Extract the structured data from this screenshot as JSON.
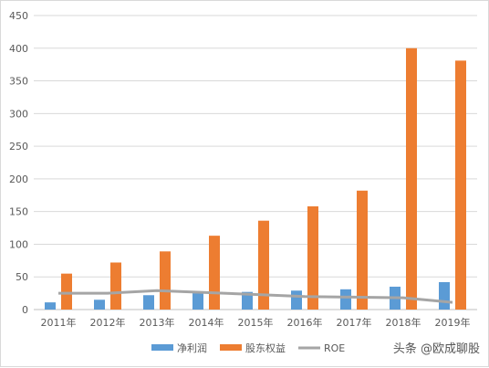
{
  "chart_data": {
    "type": "bar",
    "categories": [
      "2011年",
      "2012年",
      "2013年",
      "2014年",
      "2015年",
      "2016年",
      "2017年",
      "2018年",
      "2019年"
    ],
    "ylim": [
      0,
      450
    ],
    "yticks": [
      0,
      50,
      100,
      150,
      200,
      250,
      300,
      350,
      400,
      450
    ],
    "grid": true,
    "legend_position": "bottom",
    "series": [
      {
        "name": "净利润",
        "kind": "bar",
        "color": "#5b9bd5",
        "values": [
          11,
          15,
          22,
          25,
          27,
          29,
          31,
          35,
          42
        ]
      },
      {
        "name": "股东权益",
        "kind": "bar",
        "color": "#ed7d31",
        "values": [
          55,
          72,
          89,
          113,
          136,
          158,
          182,
          400,
          381
        ]
      },
      {
        "name": "ROE",
        "kind": "line",
        "color": "#a5a5a5",
        "values": [
          25,
          25,
          29,
          26,
          23,
          20,
          19,
          18,
          11
        ]
      }
    ]
  },
  "watermark": "头条 @欧成聊股"
}
